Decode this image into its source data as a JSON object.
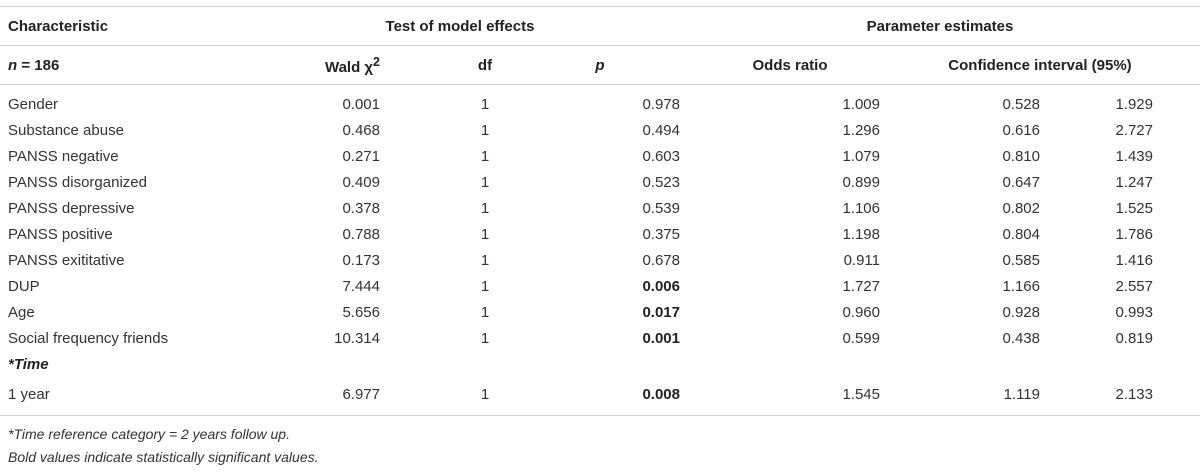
{
  "header": {
    "characteristic": "Characteristic",
    "test_of_model_effects": "Test of model effects",
    "parameter_estimates": "Parameter estimates",
    "n": "n",
    "n_value": " = 186",
    "wald": "Wald χ",
    "wald_sup": "2",
    "df": "df",
    "p": "p",
    "odds_ratio": "Odds ratio",
    "ci": "Confidence interval (95%)"
  },
  "rows": [
    {
      "name": "Gender",
      "wald": "0.001",
      "df": "1",
      "p": "0.978",
      "or": "1.009",
      "ci_low": "0.528",
      "ci_high": "1.929"
    },
    {
      "name": "Substance abuse",
      "wald": "0.468",
      "df": "1",
      "p": "0.494",
      "or": "1.296",
      "ci_low": "0.616",
      "ci_high": "2.727"
    },
    {
      "name": "PANSS negative",
      "wald": "0.271",
      "df": "1",
      "p": "0.603",
      "or": "1.079",
      "ci_low": "0.810",
      "ci_high": "1.439"
    },
    {
      "name": "PANSS disorganized",
      "wald": "0.409",
      "df": "1",
      "p": "0.523",
      "or": "0.899",
      "ci_low": "0.647",
      "ci_high": "1.247"
    },
    {
      "name": "PANSS depressive",
      "wald": "0.378",
      "df": "1",
      "p": "0.539",
      "or": "1.106",
      "ci_low": "0.802",
      "ci_high": "1.525"
    },
    {
      "name": "PANSS positive",
      "wald": "0.788",
      "df": "1",
      "p": "0.375",
      "or": "1.198",
      "ci_low": "0.804",
      "ci_high": "1.786"
    },
    {
      "name": "PANSS exititative",
      "wald": "0.173",
      "df": "1",
      "p": "0.678",
      "or": "0.911",
      "ci_low": "0.585",
      "ci_high": "1.416"
    },
    {
      "name": "DUP",
      "wald": "7.444",
      "df": "1",
      "p": "0.006",
      "or": "1.727",
      "ci_low": "1.166",
      "ci_high": "2.557"
    },
    {
      "name": "Age",
      "wald": "5.656",
      "df": "1",
      "p": "0.017",
      "or": "0.960",
      "ci_low": "0.928",
      "ci_high": "0.993"
    },
    {
      "name": "Social frequency friends",
      "wald": "10.314",
      "df": "1",
      "p": "0.001",
      "or": "0.599",
      "ci_low": "0.438",
      "ci_high": "0.819"
    }
  ],
  "section": "*Time",
  "section_row": {
    "name": "1 year",
    "wald": "6.977",
    "df": "1",
    "p": "0.008",
    "or": "1.545",
    "ci_low": "1.119",
    "ci_high": "2.133"
  },
  "footnotes": {
    "time_note": "*Time reference category = 2 years follow up.",
    "bold_note": "Bold values indicate statistically significant values."
  }
}
